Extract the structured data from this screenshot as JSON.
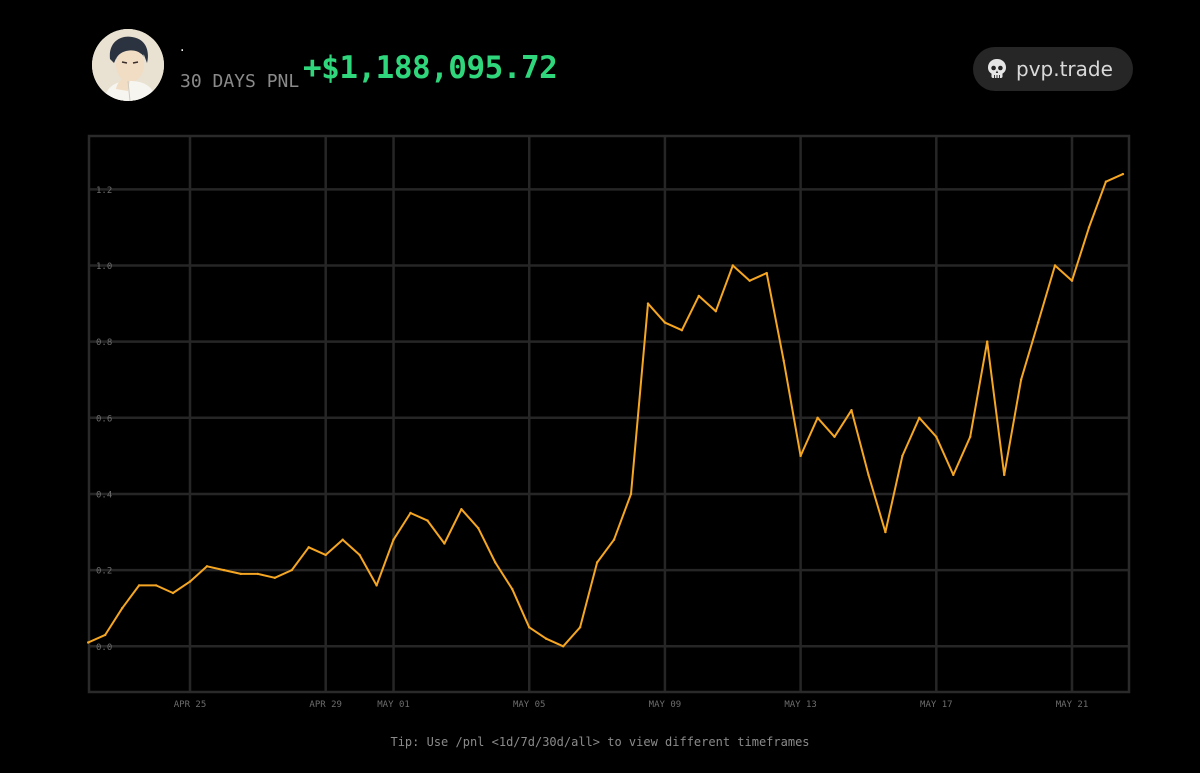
{
  "header": {
    "username": "·",
    "period_label": "30 DAYS PNL",
    "pnl_value": "+$1,188,095.72",
    "brand_name": "pvp.trade",
    "brand_icon": "skull-icon",
    "pnl_color": "#2fd67b"
  },
  "tip": {
    "text": "Tip: Use /pnl <1d/7d/30d/all> to view different timeframes"
  },
  "chart_data": {
    "type": "line",
    "title": "",
    "xlabel": "",
    "ylabel": "",
    "x_start_date": "Apr 22",
    "ylim": [
      -0.12,
      1.34
    ],
    "yticks": [
      0.0,
      0.2,
      0.4,
      0.6,
      0.8,
      1.0,
      1.2
    ],
    "ytick_labels": [
      "0.0",
      "0.2",
      "0.4",
      "0.6",
      "0.8",
      "1.0",
      "1.2"
    ],
    "xticks": [
      {
        "label": "APR 25",
        "date": "Apr 25"
      },
      {
        "label": "APR 29",
        "date": "Apr 29"
      },
      {
        "label": "MAY 01",
        "date": "May 01"
      },
      {
        "label": "MAY 05",
        "date": "May 05"
      },
      {
        "label": "MAY 09",
        "date": "May 09"
      },
      {
        "label": "MAY 13",
        "date": "May 13"
      },
      {
        "label": "MAY 17",
        "date": "May 17"
      },
      {
        "label": "MAY 21",
        "date": "May 21"
      }
    ],
    "grid": true,
    "line_color": "#f5a623",
    "series": [
      {
        "name": "",
        "x": [
          "Apr 22",
          "Apr 22 12:00",
          "Apr 23",
          "Apr 23 12:00",
          "Apr 24",
          "Apr 24 12:00",
          "Apr 25",
          "Apr 25 12:00",
          "Apr 26",
          "Apr 26 12:00",
          "Apr 27",
          "Apr 27 12:00",
          "Apr 28",
          "Apr 28 12:00",
          "Apr 29",
          "Apr 29 12:00",
          "Apr 30",
          "Apr 30 12:00",
          "May 01",
          "May 01 12:00",
          "May 02",
          "May 02 12:00",
          "May 03",
          "May 03 12:00",
          "May 04",
          "May 04 12:00",
          "May 05",
          "May 05 12:00",
          "May 06",
          "May 06 12:00",
          "May 07",
          "May 07 12:00",
          "May 08",
          "May 08 12:00",
          "May 09",
          "May 09 12:00",
          "May 10",
          "May 10 12:00",
          "May 11",
          "May 11 12:00",
          "May 12",
          "May 12 12:00",
          "May 13",
          "May 13 12:00",
          "May 14",
          "May 14 12:00",
          "May 15",
          "May 15 12:00",
          "May 16",
          "May 16 12:00",
          "May 17",
          "May 17 12:00",
          "May 18",
          "May 18 12:00",
          "May 19",
          "May 19 12:00",
          "May 20",
          "May 20 12:00",
          "May 21",
          "May 21 12:00",
          "May 22",
          "May 22 12:00"
        ],
        "y": [
          0.01,
          0.03,
          0.1,
          0.16,
          0.16,
          0.14,
          0.17,
          0.21,
          0.2,
          0.19,
          0.19,
          0.18,
          0.2,
          0.26,
          0.24,
          0.28,
          0.24,
          0.16,
          0.28,
          0.35,
          0.33,
          0.27,
          0.36,
          0.31,
          0.22,
          0.15,
          0.05,
          0.02,
          0.0,
          0.05,
          0.22,
          0.28,
          0.4,
          0.9,
          0.85,
          0.83,
          0.92,
          0.88,
          1.0,
          0.96,
          0.98,
          0.75,
          0.5,
          0.6,
          0.55,
          0.62,
          0.45,
          0.3,
          0.5,
          0.6,
          0.55,
          0.45,
          0.55,
          0.8,
          0.45,
          0.7,
          0.85,
          1.0,
          0.96,
          1.1,
          1.22,
          1.24
        ]
      }
    ]
  }
}
